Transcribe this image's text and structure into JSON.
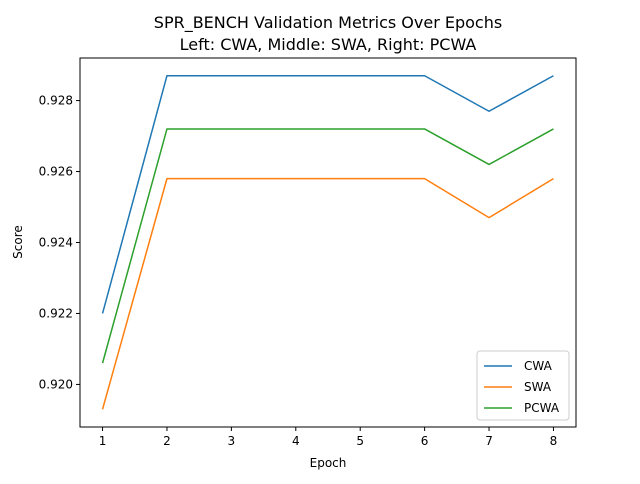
{
  "chart_data": {
    "type": "line",
    "title": "SPR_BENCH Validation Metrics Over Epochs",
    "subtitle": "Left: CWA, Middle: SWA, Right: PCWA",
    "xlabel": "Epoch",
    "ylabel": "Score",
    "x": [
      1,
      2,
      3,
      4,
      5,
      6,
      7,
      8
    ],
    "xlim": [
      0.65,
      8.35
    ],
    "ylim": [
      0.9188,
      0.9292
    ],
    "xticks": [
      "1",
      "2",
      "3",
      "4",
      "5",
      "6",
      "7",
      "8"
    ],
    "yticks": [
      "0.920",
      "0.922",
      "0.924",
      "0.926",
      "0.928"
    ],
    "grid": false,
    "legend_position": "lower-right",
    "series": [
      {
        "name": "CWA",
        "color": "#1f77b4",
        "values": [
          0.922,
          0.9287,
          0.9287,
          0.9287,
          0.9287,
          0.9287,
          0.9277,
          0.9287
        ]
      },
      {
        "name": "SWA",
        "color": "#ff7f0e",
        "values": [
          0.9193,
          0.9258,
          0.9258,
          0.9258,
          0.9258,
          0.9258,
          0.9247,
          0.9258
        ]
      },
      {
        "name": "PCWA",
        "color": "#2ca02c",
        "values": [
          0.9206,
          0.9272,
          0.9272,
          0.9272,
          0.9272,
          0.9272,
          0.9262,
          0.9272
        ]
      }
    ]
  }
}
